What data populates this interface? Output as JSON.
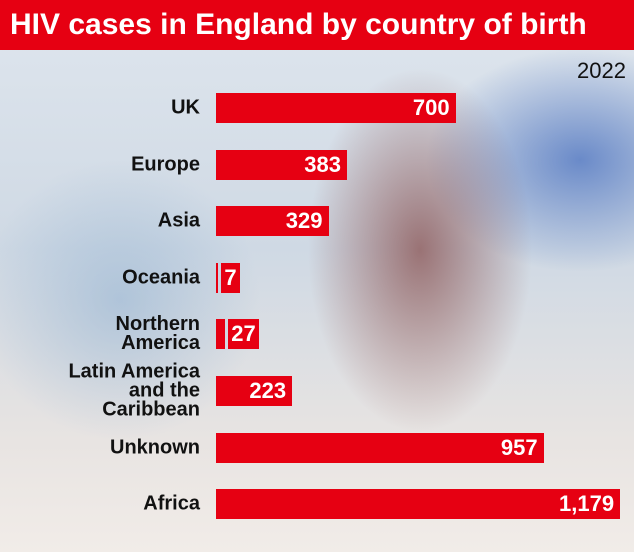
{
  "chart_data": {
    "type": "bar",
    "orientation": "horizontal",
    "title": "HIV cases in England by country of birth",
    "subtitle": "2022",
    "categories": [
      "UK",
      "Europe",
      "Asia",
      "Oceania",
      "Northern America",
      "Latin America and the Caribbean",
      "Unknown",
      "Africa"
    ],
    "values": [
      700,
      383,
      329,
      7,
      27,
      223,
      957,
      1179
    ],
    "value_labels": [
      "700",
      "383",
      "329",
      "7",
      "27",
      "223",
      "957",
      "1,179"
    ],
    "color": "#e60012"
  }
}
